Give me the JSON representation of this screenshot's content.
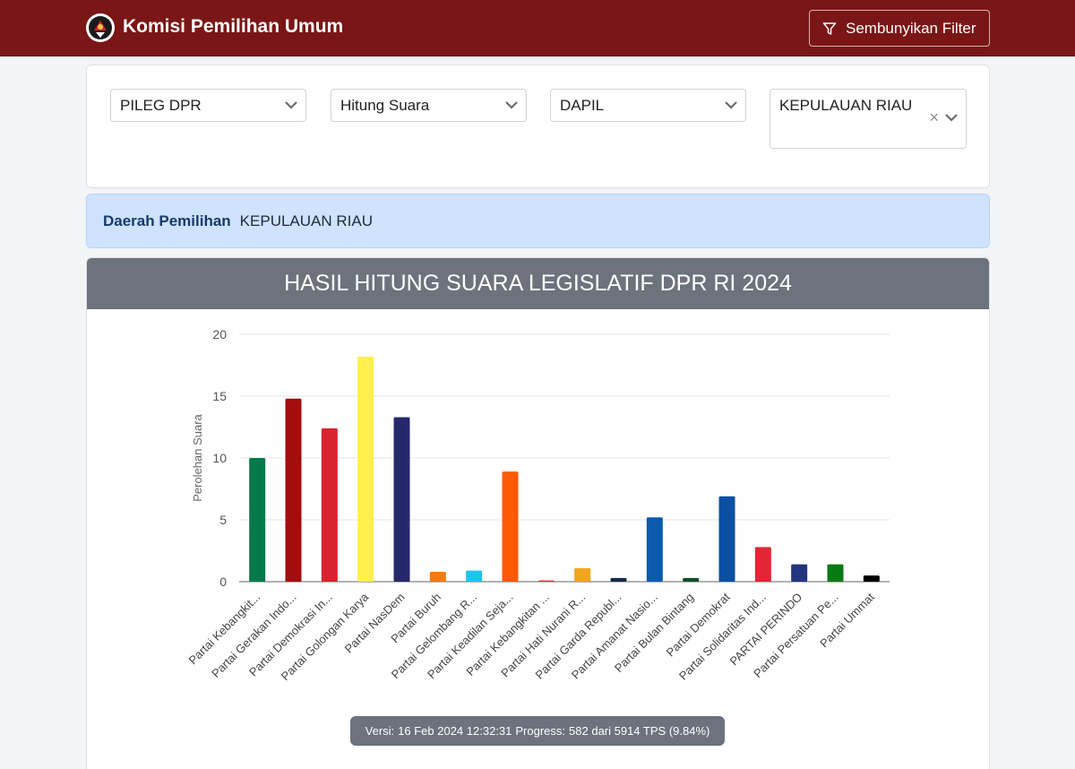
{
  "header": {
    "brand": "Komisi Pemilihan Umum",
    "filter_button": "Sembunyikan Filter"
  },
  "filters": [
    {
      "value": "PILEG DPR"
    },
    {
      "value": "Hitung Suara"
    },
    {
      "value": "DAPIL"
    },
    {
      "value": "KEPULAUAN RIAU",
      "clear": "×"
    }
  ],
  "info": {
    "label": "Daerah Pemilihan",
    "value": "KEPULAUAN RIAU"
  },
  "card": {
    "title": "HASIL HITUNG SUARA LEGISLATIF DPR RI 2024"
  },
  "status": {
    "versi_label": "Versi:",
    "versi_value": "16 Feb 2024 12:32:31",
    "progress_label": "Progress:",
    "progress_value": "582 dari 5914 TPS (9.84%)"
  },
  "chart_data": {
    "type": "bar",
    "title": "HASIL HITUNG SUARA LEGISLATIF DPR RI 2024",
    "ylabel": "Perolehan Suara",
    "ylim": [
      0,
      20
    ],
    "yticks": [
      "0",
      "5",
      "10",
      "15",
      "20"
    ],
    "grid": true,
    "categories": [
      "Partai Kebangkit...",
      "Partai Gerakan Indo...",
      "Partai Demokrasi In...",
      "Partai Golongan Karya",
      "Partai NasDem",
      "Partai Buruh",
      "Partai Gelombang R...",
      "Partai Keadilan Seja...",
      "Partai Kebangkitan ...",
      "Partai Hati Nurani R...",
      "Partai Garda Republ...",
      "Partai Amanat Nasio...",
      "Partai Bulan Bintang",
      "Partai Demokrat",
      "Partai Solidaritas Ind...",
      "PARTAI PERINDO",
      "Partai Persatuan Pe...",
      "Partai Ummat"
    ],
    "values": [
      10.0,
      14.8,
      12.4,
      18.2,
      13.3,
      0.8,
      0.9,
      8.9,
      0.1,
      1.1,
      0.3,
      5.2,
      0.3,
      6.9,
      2.8,
      1.4,
      1.4,
      0.5
    ],
    "colors": [
      "#037a4b",
      "#a30d0d",
      "#d8242e",
      "#fff04d",
      "#27286b",
      "#f57a0f",
      "#1cc5ee",
      "#ff5a05",
      "#e6322d",
      "#f2a51e",
      "#142c4b",
      "#0a5bb0",
      "#0f4f28",
      "#0b4fa4",
      "#e32635",
      "#22357e",
      "#087a14",
      "#000000"
    ]
  }
}
